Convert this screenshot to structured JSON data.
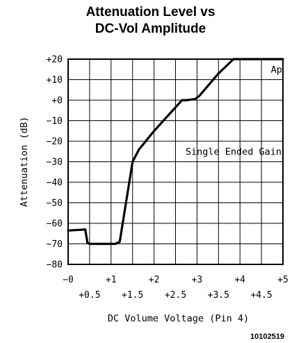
{
  "chart_data": {
    "type": "line",
    "title_lines": [
      "Attenuation Level vs",
      "DC-Vol Amplitude"
    ],
    "xlabel": "DC Volume Voltage (Pin 4)",
    "ylabel": "Attenuation (dB)",
    "xlim": [
      0,
      5
    ],
    "ylim": [
      -80,
      20
    ],
    "x_major_ticks": [
      {
        "value": 0,
        "label": "−0"
      },
      {
        "value": 1,
        "label": "+1"
      },
      {
        "value": 2,
        "label": "+2"
      },
      {
        "value": 3,
        "label": "+3"
      },
      {
        "value": 4,
        "label": "+4"
      },
      {
        "value": 5,
        "label": "+5"
      }
    ],
    "x_minor_ticks": [
      {
        "value": 0.5,
        "label": "+0.5"
      },
      {
        "value": 1.5,
        "label": "+1.5"
      },
      {
        "value": 2.5,
        "label": "+2.5"
      },
      {
        "value": 3.5,
        "label": "+3.5"
      },
      {
        "value": 4.5,
        "label": "+4.5"
      }
    ],
    "y_ticks": [
      {
        "value": 20,
        "label": "+20"
      },
      {
        "value": 10,
        "label": "+10"
      },
      {
        "value": 0,
        "label": "+0"
      },
      {
        "value": -10,
        "label": "−10"
      },
      {
        "value": -20,
        "label": "−20"
      },
      {
        "value": -30,
        "label": "−30"
      },
      {
        "value": -40,
        "label": "−40"
      },
      {
        "value": -50,
        "label": "−50"
      },
      {
        "value": -60,
        "label": "−60"
      },
      {
        "value": -70,
        "label": "−70"
      },
      {
        "value": -80,
        "label": "−80"
      }
    ],
    "grid": true,
    "series": [
      {
        "x": [
          0,
          0.4,
          0.45,
          0.5,
          0.6,
          1.1,
          1.2,
          1.5,
          1.65,
          2.0,
          2.65,
          2.75,
          2.95,
          3.05,
          3.5,
          3.85,
          4.0,
          5.0
        ],
        "y": [
          -63.5,
          -63,
          -69.5,
          -70,
          -70,
          -70,
          -69,
          -30,
          -24,
          -15,
          0,
          0,
          0.5,
          2,
          13,
          20,
          20,
          20
        ]
      }
    ],
    "annotations": [
      {
        "text": "Ap",
        "x": 4.85,
        "y": 15
      },
      {
        "text": "Single Ended Gain",
        "x": 3.85,
        "y": -25
      }
    ],
    "figure_id": "10102519"
  }
}
